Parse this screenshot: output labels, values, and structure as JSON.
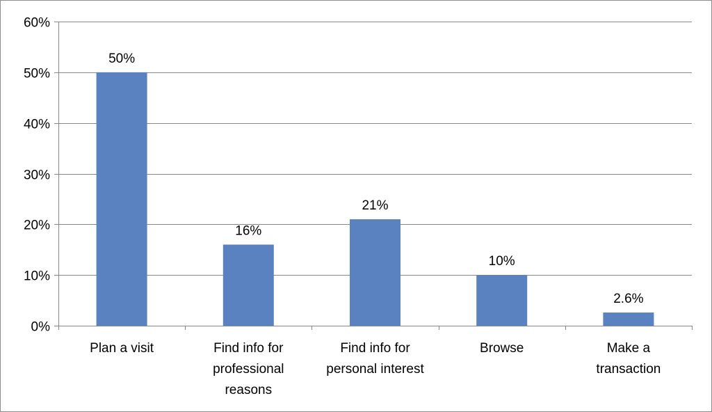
{
  "chart_data": {
    "type": "bar",
    "title": "",
    "xlabel": "",
    "ylabel": "",
    "categories": [
      [
        "Plan a visit"
      ],
      [
        "Find info for",
        "professional",
        "reasons"
      ],
      [
        "Find info for",
        "personal interest"
      ],
      [
        "Browse"
      ],
      [
        "Make a",
        "transaction"
      ]
    ],
    "values": [
      50,
      16,
      21,
      10,
      2.6
    ],
    "data_labels": [
      "50%",
      "16%",
      "21%",
      "10%",
      "2.6%"
    ],
    "ylim": [
      0,
      60
    ],
    "y_ticks": [
      0,
      10,
      20,
      30,
      40,
      50,
      60
    ],
    "y_tick_labels": [
      "0%",
      "10%",
      "20%",
      "30%",
      "40%",
      "50%",
      "60%"
    ],
    "grid": true,
    "legend": "none",
    "colors": {
      "bar": "#5b82c0",
      "grid": "#868686",
      "axis": "#868686"
    }
  }
}
